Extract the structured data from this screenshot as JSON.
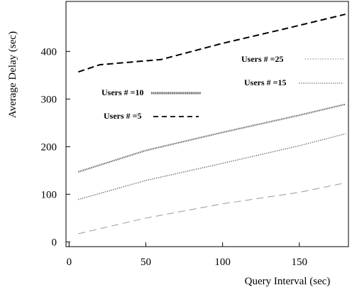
{
  "chart_data": {
    "type": "line",
    "title": "",
    "xlabel": "Query  Interval (sec)",
    "ylabel": "Average Delay (sec)",
    "xlim": [
      -2,
      182
    ],
    "ylim": [
      -10,
      505
    ],
    "xticks": [
      0,
      50,
      100,
      150
    ],
    "yticks": [
      0,
      100,
      200,
      300,
      400
    ],
    "grid": false,
    "legend_placement": "inside",
    "series": [
      {
        "name": "Users # =25",
        "style": "dashed",
        "color": "#000000",
        "x": [
          6,
          20,
          60,
          100,
          140,
          180
        ],
        "y": [
          357,
          372,
          383,
          417,
          447,
          478
        ]
      },
      {
        "name": "Users # =15",
        "style": "dotted",
        "color": "#555555",
        "x": [
          6,
          50,
          100,
          150,
          180
        ],
        "y": [
          147,
          192,
          230,
          266,
          289
        ]
      },
      {
        "name": "Users # =10",
        "style": "dense-dotted",
        "color": "#666666",
        "x": [
          6,
          50,
          100,
          150,
          180
        ],
        "y": [
          89,
          129,
          165,
          202,
          227
        ]
      },
      {
        "name": "Users # =5",
        "style": "long-dash",
        "color": "#999999",
        "x": [
          6,
          50,
          100,
          150,
          180
        ],
        "y": [
          17,
          50,
          80,
          104,
          124
        ]
      }
    ]
  }
}
